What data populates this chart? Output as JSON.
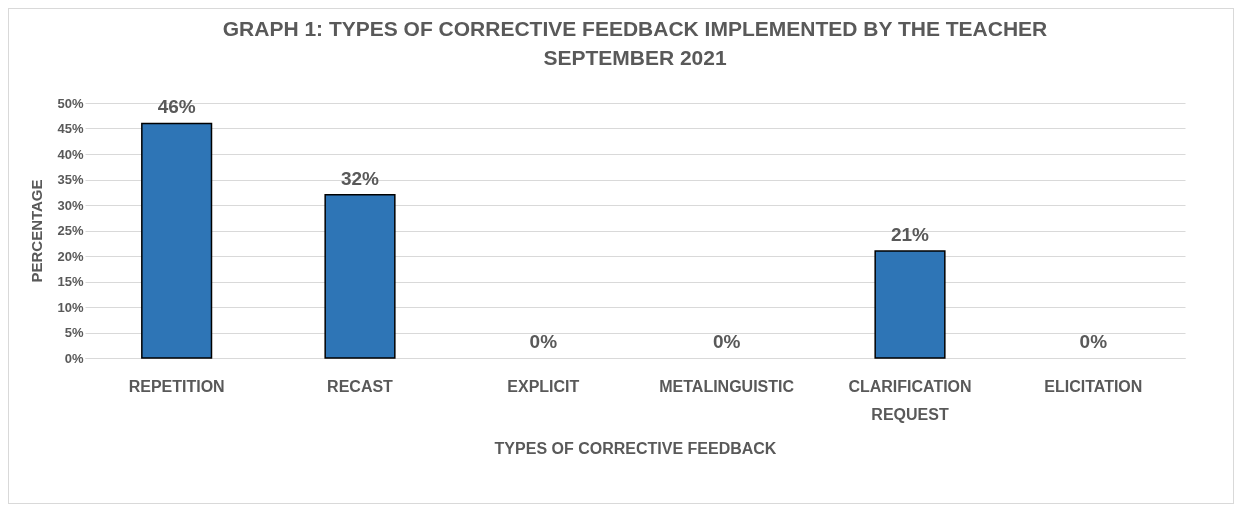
{
  "chart_data": {
    "type": "bar",
    "title": "GRAPH 1: TYPES OF CORRECTIVE FEEDBACK IMPLEMENTED BY THE TEACHER",
    "subtitle": "SEPTEMBER 2021",
    "xlabel": "TYPES OF CORRECTIVE FEEDBACK",
    "ylabel": "PERCENTAGE",
    "categories": [
      "REPETITION",
      "RECAST",
      "EXPLICIT",
      "METALINGUISTIC",
      "CLARIFICATION REQUEST",
      "ELICITATION"
    ],
    "values": [
      46,
      32,
      0,
      0,
      21,
      0
    ],
    "value_labels": [
      "46%",
      "32%",
      "0%",
      "0%",
      "21%",
      "0%"
    ],
    "color": "#2e75b6",
    "ylim": [
      0,
      50
    ],
    "yticks": [
      {
        "value": 0,
        "label": "0%"
      },
      {
        "value": 5,
        "label": "5%"
      },
      {
        "value": 10,
        "label": "10%"
      },
      {
        "value": 15,
        "label": "15%"
      },
      {
        "value": 20,
        "label": "20%"
      },
      {
        "value": 25,
        "label": "25%"
      },
      {
        "value": 30,
        "label": "30%"
      },
      {
        "value": 35,
        "label": "35%"
      },
      {
        "value": 40,
        "label": "40%"
      },
      {
        "value": 45,
        "label": "45%"
      },
      {
        "value": 50,
        "label": "50%"
      }
    ],
    "grid": "y"
  }
}
